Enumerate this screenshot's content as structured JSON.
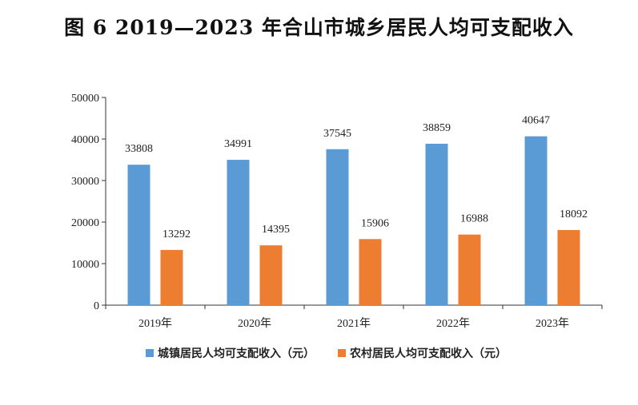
{
  "title": "图 6   2019—2023 年合山市城乡居民人均可支配收入",
  "chart_data": {
    "type": "bar",
    "categories": [
      "2019年",
      "2020年",
      "2021年",
      "2022年",
      "2023年"
    ],
    "series": [
      {
        "name": "城镇居民人均可支配收入（元）",
        "values": [
          33808,
          34991,
          37545,
          38859,
          40647
        ],
        "color": "#5B9BD5"
      },
      {
        "name": "农村居民人均可支配收入（元）",
        "values": [
          13292,
          14395,
          15906,
          16988,
          18092
        ],
        "color": "#ED7D31"
      }
    ],
    "ylim": [
      0,
      50000
    ],
    "yticks": [
      0,
      10000,
      20000,
      30000,
      40000,
      50000
    ],
    "xlabel": "",
    "ylabel": "",
    "grid": false,
    "legend_position": "bottom"
  }
}
